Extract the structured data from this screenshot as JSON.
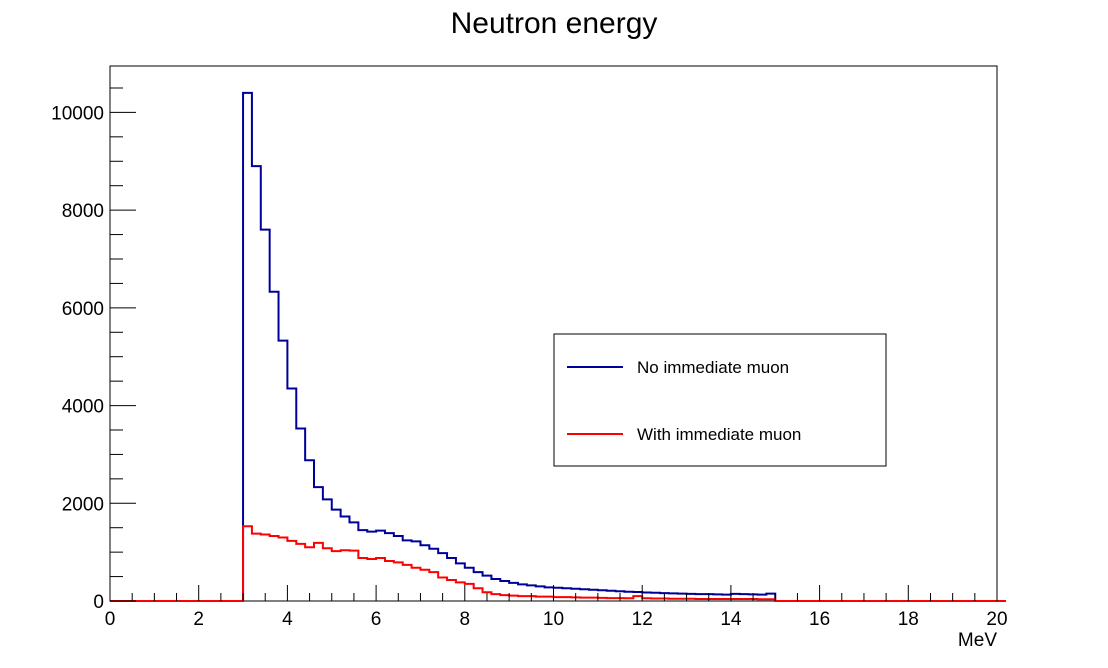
{
  "chart_data": {
    "type": "histogram",
    "title": "Neutron energy",
    "xlabel": "MeV",
    "ylabel": "",
    "xlim": [
      0,
      20
    ],
    "ylim": [
      0,
      10950
    ],
    "bin_width": 0.2,
    "x_ticks": [
      0,
      2,
      4,
      6,
      8,
      10,
      12,
      14,
      16,
      18,
      20
    ],
    "y_ticks": [
      0,
      2000,
      4000,
      6000,
      8000,
      10000
    ],
    "grid": false,
    "legend_placement": "center-right",
    "series": [
      {
        "name": "No immediate muon",
        "color": "#000099",
        "values": [
          0,
          0,
          0,
          0,
          0,
          0,
          0,
          0,
          0,
          0,
          0,
          0,
          0,
          0,
          0,
          10400,
          8900,
          7600,
          6330,
          5330,
          4350,
          3530,
          2880,
          2330,
          2080,
          1870,
          1730,
          1610,
          1450,
          1420,
          1440,
          1390,
          1330,
          1240,
          1220,
          1140,
          1070,
          980,
          880,
          770,
          680,
          590,
          520,
          450,
          410,
          370,
          340,
          320,
          300,
          280,
          270,
          260,
          250,
          240,
          230,
          220,
          210,
          200,
          190,
          185,
          175,
          170,
          160,
          155,
          150,
          145,
          140,
          140,
          135,
          130,
          145,
          140,
          135,
          130,
          150,
          0,
          0,
          0,
          0,
          0,
          0,
          0,
          0,
          0,
          0,
          0,
          0,
          0,
          0,
          0,
          0,
          0,
          0,
          0,
          0,
          0,
          0,
          0,
          0,
          0,
          0
        ]
      },
      {
        "name": "With immediate muon",
        "color": "#ff0000",
        "values": [
          0,
          0,
          0,
          0,
          0,
          0,
          0,
          0,
          0,
          0,
          0,
          0,
          0,
          0,
          0,
          1530,
          1380,
          1360,
          1330,
          1300,
          1230,
          1170,
          1100,
          1190,
          1080,
          1020,
          1040,
          1030,
          880,
          860,
          880,
          820,
          790,
          740,
          680,
          640,
          590,
          480,
          430,
          380,
          350,
          260,
          180,
          140,
          120,
          110,
          100,
          100,
          90,
          90,
          80,
          80,
          75,
          70,
          70,
          65,
          60,
          60,
          55,
          100,
          55,
          50,
          50,
          45,
          45,
          45,
          40,
          40,
          40,
          40,
          40,
          40,
          40,
          35,
          35,
          0,
          0,
          0,
          0,
          0,
          0,
          0,
          0,
          0,
          0,
          0,
          0,
          0,
          0,
          0,
          0,
          0,
          0,
          0,
          0,
          0,
          0,
          0,
          0,
          0,
          0
        ]
      }
    ]
  }
}
